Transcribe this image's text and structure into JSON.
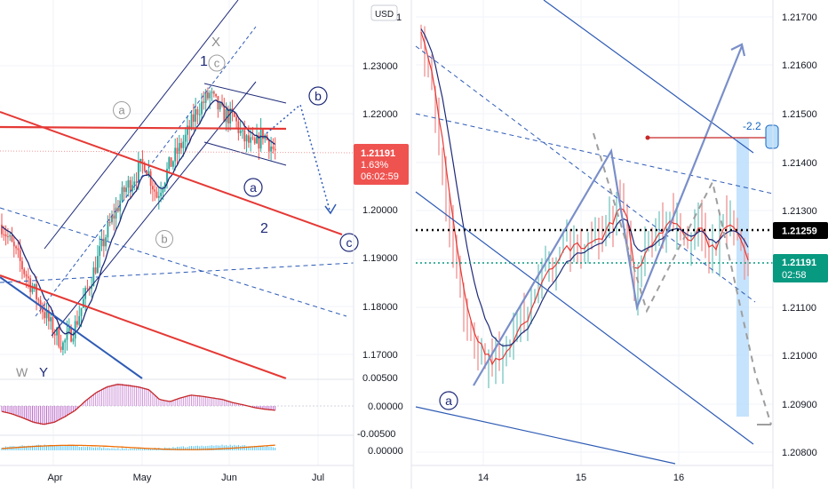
{
  "left_panel": {
    "currency": "USD",
    "price_ticks": [
      "1.23000",
      "1.22000",
      "1.20000",
      "1.19000",
      "1.18000",
      "1.17000"
    ],
    "price_label": {
      "price": "1.21191",
      "change": "1.63%",
      "countdown": "06:02:59"
    },
    "macd_ticks": [
      "0.00500",
      "0.00000",
      "-0.00500"
    ],
    "rsi_ticks": [
      "0.00000"
    ],
    "time_ticks": [
      "Apr",
      "May",
      "Jun",
      "Jul"
    ],
    "wave_labels": {
      "x": "X",
      "w": "W",
      "y": "Y",
      "one": "1",
      "two": "2",
      "a_grey": "a",
      "c_grey": "c",
      "b_grey": "b",
      "b_blue": "b",
      "a_blue": "a",
      "c_blue": "c"
    }
  },
  "right_panel": {
    "price_ticks": [
      "1.21700",
      "1.21600",
      "1.21500",
      "1.21400",
      "1.21300",
      "1.21100",
      "1.21000",
      "1.20900",
      "1.20800"
    ],
    "level_label": "1.21259",
    "price_label": {
      "price": "1.21191",
      "countdown": "02:58"
    },
    "measure_label": "-2.2",
    "time_ticks": [
      "14",
      "15",
      "16"
    ],
    "wave_label_a": "a"
  },
  "colors": {
    "bull": "#26a69a",
    "bear": "#ef5350",
    "channel": "#1e2a78",
    "dashed_blue": "#2e5bb5",
    "projection": "#7a8fc9",
    "red_line": "#e53935",
    "price_tag": "#ef5350",
    "green_tag": "#089981",
    "highlight": "#bbdefb"
  },
  "chart_data": [
    {
      "type": "candlestick",
      "panel": "left",
      "title": "",
      "x_ticks": [
        "Apr",
        "May",
        "Jun",
        "Jul"
      ],
      "ylim": [
        1.165,
        1.245
      ],
      "close_path": [
        [
          0,
          1.197
        ],
        [
          8,
          1.19
        ],
        [
          16,
          1.183
        ],
        [
          24,
          1.176
        ],
        [
          30,
          1.172
        ],
        [
          36,
          1.176
        ],
        [
          44,
          1.186
        ],
        [
          52,
          1.196
        ],
        [
          60,
          1.204
        ],
        [
          70,
          1.21
        ],
        [
          76,
          1.203
        ],
        [
          82,
          1.209
        ],
        [
          90,
          1.215
        ],
        [
          96,
          1.221
        ],
        [
          102,
          1.224
        ],
        [
          108,
          1.22
        ],
        [
          114,
          1.219
        ],
        [
          118,
          1.215
        ],
        [
          124,
          1.213
        ],
        [
          128,
          1.216
        ],
        [
          134,
          1.212
        ]
      ],
      "current_price": 1.21191,
      "change_pct": "1.63%"
    },
    {
      "type": "candlestick",
      "panel": "right",
      "title": "",
      "x_ticks": [
        "14",
        "15",
        "16"
      ],
      "ylim": [
        1.2076,
        1.2178
      ],
      "close_path": [
        [
          0,
          1.2168
        ],
        [
          4,
          1.2148
        ],
        [
          8,
          1.2128
        ],
        [
          12,
          1.2108
        ],
        [
          16,
          1.2101
        ],
        [
          20,
          1.2098
        ],
        [
          24,
          1.2102
        ],
        [
          28,
          1.2106
        ],
        [
          32,
          1.2112
        ],
        [
          36,
          1.2119
        ],
        [
          40,
          1.2122
        ],
        [
          44,
          1.2123
        ],
        [
          48,
          1.2124
        ],
        [
          52,
          1.2126
        ],
        [
          56,
          1.2132
        ],
        [
          58,
          1.2128
        ],
        [
          60,
          1.211
        ],
        [
          62,
          1.2122
        ],
        [
          66,
          1.2125
        ],
        [
          70,
          1.2127
        ],
        [
          74,
          1.2124
        ],
        [
          78,
          1.2126
        ],
        [
          82,
          1.2121
        ],
        [
          86,
          1.2128
        ],
        [
          90,
          1.2122
        ],
        [
          92,
          1.2119
        ]
      ],
      "reference_level": 1.21259,
      "current_price": 1.21191
    },
    {
      "type": "bar",
      "panel": "left-macd",
      "ylim": [
        -0.0065,
        0.0065
      ],
      "values": [
        -0.001,
        -0.0015,
        -0.0022,
        -0.003,
        -0.0034,
        -0.003,
        -0.002,
        -0.0008,
        0.001,
        0.0025,
        0.0035,
        0.004,
        0.0038,
        0.0035,
        0.003,
        0.0012,
        0.0008,
        0.0015,
        0.002,
        0.0018,
        0.0015,
        0.0012,
        0.0006,
        0.0002,
        -0.0003,
        -0.0006,
        -0.0008
      ]
    }
  ]
}
